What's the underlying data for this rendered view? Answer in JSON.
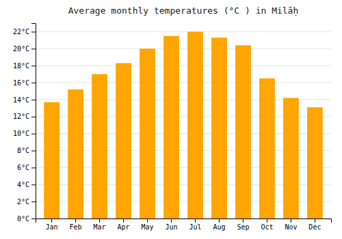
{
  "chart_data": {
    "type": "bar",
    "title": "Average monthly temperatures (°C ) in Milāḥ",
    "categories": [
      "Jan",
      "Feb",
      "Mar",
      "Apr",
      "May",
      "Jun",
      "Jul",
      "Aug",
      "Sep",
      "Oct",
      "Nov",
      "Dec"
    ],
    "values": [
      13.7,
      15.2,
      17.0,
      18.3,
      20.0,
      21.5,
      22.0,
      21.3,
      20.4,
      16.5,
      14.2,
      13.1
    ],
    "color": "#FFA500",
    "ylim": [
      0,
      23
    ],
    "yticks": [
      {
        "value": 0,
        "label": "0°C"
      },
      {
        "value": 2,
        "label": "2°C"
      },
      {
        "value": 4,
        "label": "4°C"
      },
      {
        "value": 6,
        "label": "6°C"
      },
      {
        "value": 8,
        "label": "8°C"
      },
      {
        "value": 10,
        "label": "10°C"
      },
      {
        "value": 12,
        "label": "12°C"
      },
      {
        "value": 14,
        "label": "14°C"
      },
      {
        "value": 16,
        "label": "16°C"
      },
      {
        "value": 18,
        "label": "18°C"
      },
      {
        "value": 20,
        "label": "20°C"
      },
      {
        "value": 22,
        "label": "22°C"
      }
    ],
    "grid": true
  }
}
